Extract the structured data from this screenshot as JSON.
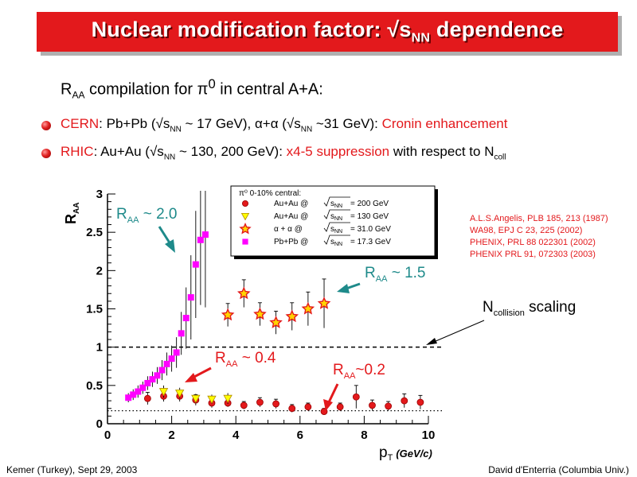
{
  "title": {
    "main": "Nuclear modification factor: √s",
    "sub": "NN",
    "end": " dependence"
  },
  "subtitle": {
    "a": "R",
    "sub": "AA",
    "b": " compilation for π",
    "sup": "0",
    "c": "  in central A+A:"
  },
  "bullets": [
    {
      "label": "CERN",
      "p1": ": Pb+Pb (√s",
      "s1": "NN",
      "p2": " ~ 17 GeV), α+α (√s",
      "s2": "NN",
      "p3": " ~31 GeV): ",
      "hl": "Cronin enhancement"
    },
    {
      "label": "RHIC",
      "p1": ": Au+Au (√s",
      "s1": "NN",
      "p2": " ~ 130, 200 GeV): ",
      "hl": "x4-5 suppression",
      "p3": " with respect to N",
      "s2": "coll"
    }
  ],
  "references": [
    "A.L.S.Angelis, PLB 185, 213 (1987)",
    "WA98, EPJ C 23, 225 (2002)",
    "PHENIX, PRL 88 022301 (2002)",
    "PHENIX PRL 91, 072303  (2003)"
  ],
  "annotations": {
    "raa20": {
      "a": "R",
      "sub": "AA",
      "b": " ~  2.0"
    },
    "raa15": {
      "a": "R",
      "sub": "AA",
      "b": " ~  1.5"
    },
    "raa04": {
      "a": "R",
      "sub": "AA",
      "b": " ~  0.4"
    },
    "raa02": {
      "a": "R",
      "sub": "AA",
      "b": "~0.2"
    },
    "ncoll": {
      "a": "N",
      "sub": "collision",
      "b": "  scaling"
    }
  },
  "footer": {
    "left": "Kemer (Turkey), Sept 29, 2003",
    "right": "David d'Enterria (Columbia Univ.)"
  },
  "colors": {
    "title_bg": "#e3191c",
    "teal": "#1e8a8a",
    "pbpb": "#ff00ff",
    "auau200": "#e3191c",
    "auau130": "#ffff00",
    "aa": "#e3191c"
  },
  "chart_data": {
    "type": "scatter",
    "title": "",
    "xlabel": "p_T (GeV/c)",
    "ylabel": "R_AA",
    "xlim": [
      0,
      10
    ],
    "ylim": [
      0,
      3
    ],
    "x_ticks": [
      0,
      2,
      4,
      6,
      8,
      10
    ],
    "y_ticks": [
      0,
      0.5,
      1,
      1.5,
      2,
      2.5,
      3
    ],
    "legend": {
      "header": "π⁰ 0-10% central:",
      "entries": [
        {
          "system": "Au+Au @ ",
          "energy": " = 200 GeV"
        },
        {
          "system": "Au+Au @ ",
          "energy": " = 130 GeV"
        },
        {
          "system": "α + α  @ ",
          "energy": " = 31.0 GeV"
        },
        {
          "system": "Pb+Pb @ ",
          "energy": " = 17.3 GeV"
        }
      ],
      "sqrt_label": "s",
      "sqrt_sub": "NN",
      "position": "top-right"
    },
    "reference_lines": [
      {
        "y": 1.0,
        "style": "dashed"
      },
      {
        "y": 0.17,
        "style": "dotted"
      }
    ],
    "series": [
      {
        "marker": "circle",
        "color": "#e3191c",
        "x": [
          1.25,
          1.75,
          2.25,
          2.75,
          3.25,
          3.75,
          4.25,
          4.75,
          5.25,
          5.75,
          6.25,
          6.75,
          7.25,
          7.75,
          8.25,
          8.75,
          9.25,
          9.75
        ],
        "y": [
          0.33,
          0.36,
          0.36,
          0.31,
          0.27,
          0.27,
          0.24,
          0.28,
          0.26,
          0.2,
          0.22,
          0.16,
          0.22,
          0.35,
          0.24,
          0.23,
          0.3,
          0.28
        ],
        "err": [
          0.08,
          0.07,
          0.07,
          0.07,
          0.06,
          0.05,
          0.05,
          0.06,
          0.06,
          0.05,
          0.05,
          0.04,
          0.05,
          0.15,
          0.07,
          0.06,
          0.09,
          0.09
        ]
      },
      {
        "marker": "triangle-down",
        "color": "#ffff00",
        "x": [
          1.75,
          2.25,
          2.75,
          3.25,
          3.75
        ],
        "y": [
          0.42,
          0.4,
          0.33,
          0.32,
          0.33
        ],
        "err": [
          0.08,
          0.07,
          0.06,
          0.06,
          0.07
        ]
      },
      {
        "marker": "star",
        "color": "#e3191c",
        "x": [
          3.75,
          4.25,
          4.75,
          5.25,
          5.75,
          6.25,
          6.75
        ],
        "y": [
          1.42,
          1.7,
          1.43,
          1.32,
          1.4,
          1.5,
          1.57
        ],
        "err": [
          0.15,
          0.18,
          0.15,
          0.15,
          0.18,
          0.22,
          0.32
        ]
      },
      {
        "marker": "square",
        "color": "#ff00ff",
        "x": [
          0.65,
          0.8,
          0.95,
          1.1,
          1.25,
          1.4,
          1.55,
          1.7,
          1.85,
          2.0,
          2.15,
          2.3,
          2.45,
          2.6,
          2.75,
          2.9,
          3.05
        ],
        "y": [
          0.34,
          0.38,
          0.42,
          0.47,
          0.53,
          0.58,
          0.63,
          0.7,
          0.78,
          0.85,
          0.93,
          1.18,
          1.38,
          1.65,
          2.08,
          2.4,
          2.47
        ],
        "err": [
          0.06,
          0.07,
          0.08,
          0.08,
          0.09,
          0.1,
          0.11,
          0.13,
          0.15,
          0.17,
          0.2,
          0.28,
          0.4,
          0.55,
          0.7,
          0.85,
          0.95
        ]
      }
    ]
  }
}
